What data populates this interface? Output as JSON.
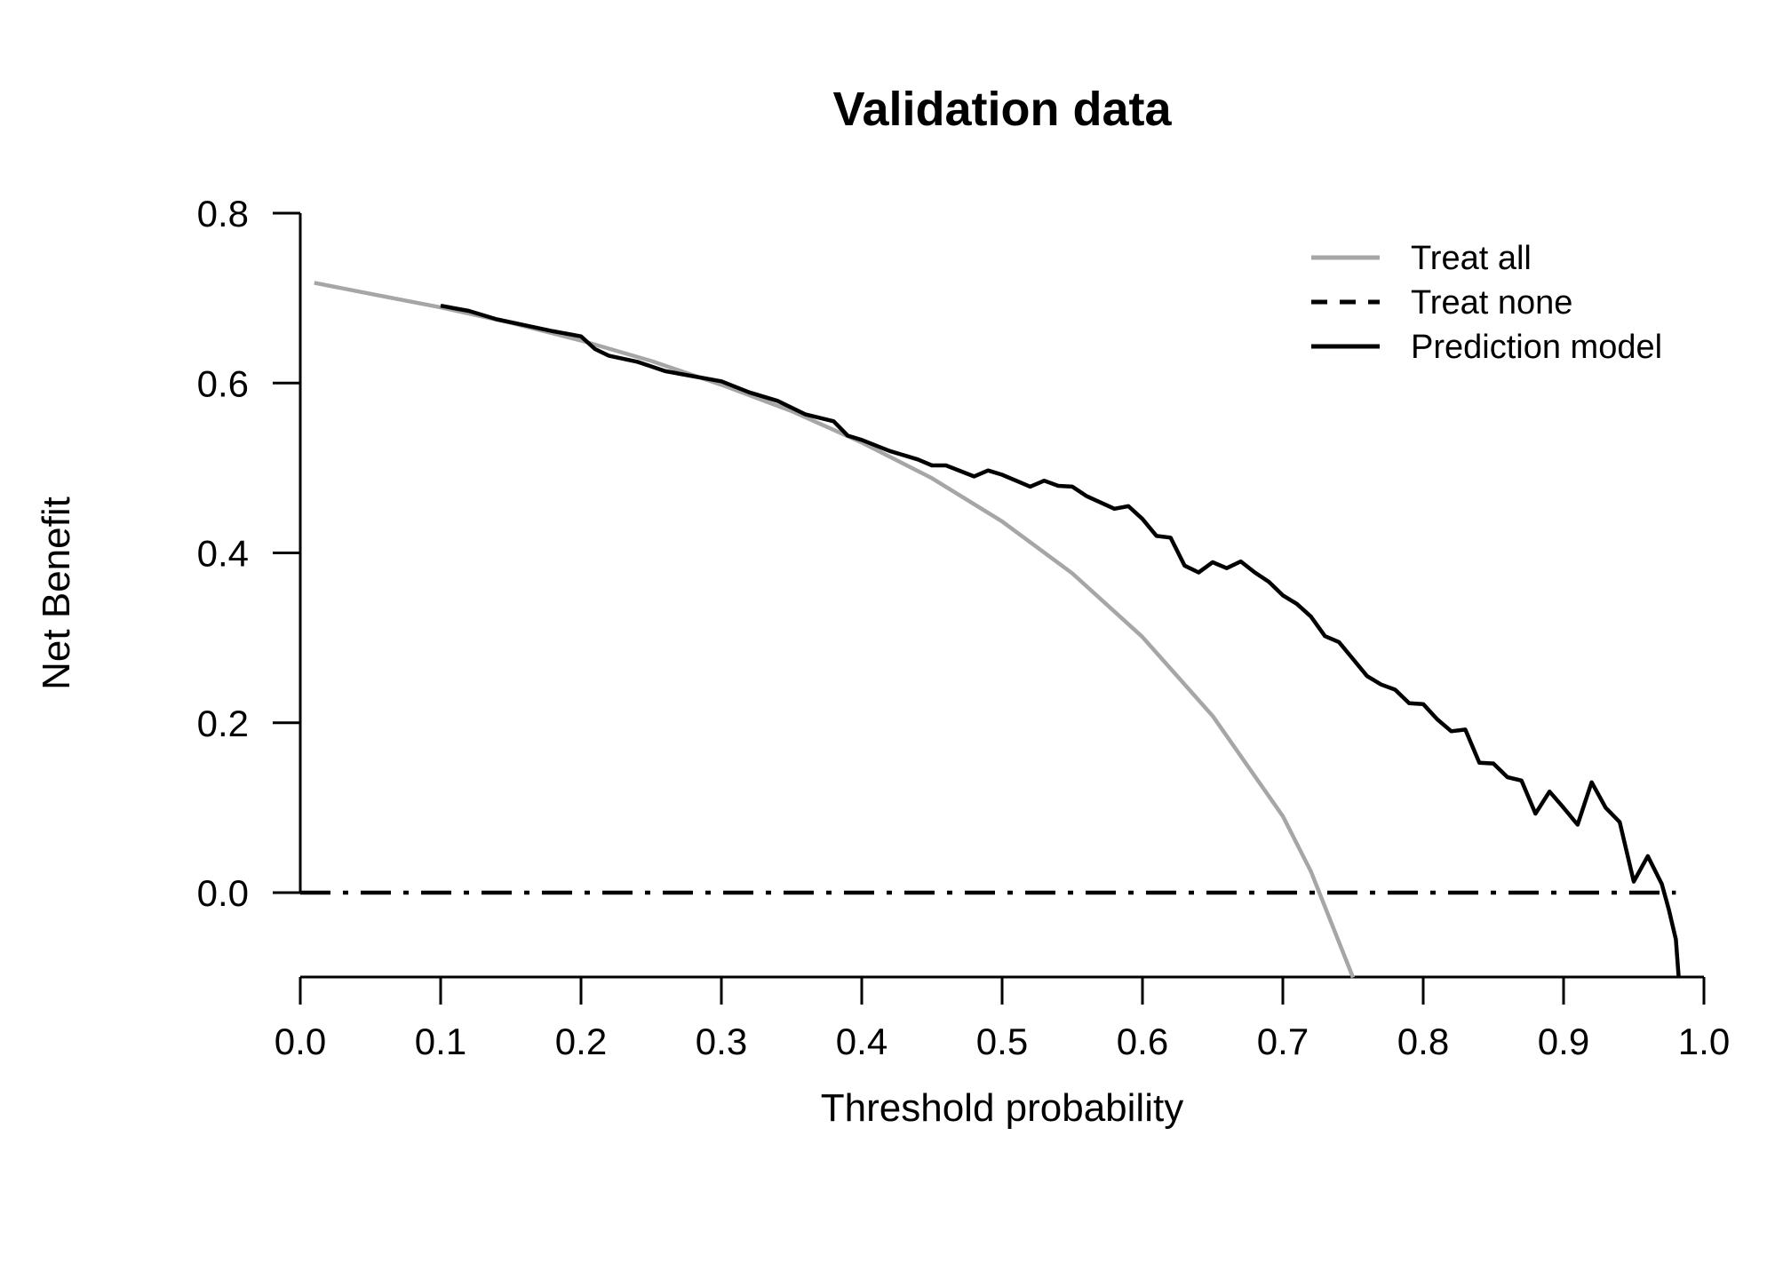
{
  "chart_data": {
    "type": "line",
    "title": "Validation data",
    "xlabel": "Threshold probability",
    "ylabel": "Net Benefit",
    "xlim": [
      0,
      1
    ],
    "ylim": [
      -0.1,
      0.8
    ],
    "xticks": [
      0.0,
      0.1,
      0.2,
      0.3,
      0.4,
      0.5,
      0.6,
      0.7,
      0.8,
      0.9,
      1.0
    ],
    "xtick_labels": [
      "0.0",
      "0.1",
      "0.2",
      "0.3",
      "0.4",
      "0.5",
      "0.6",
      "0.7",
      "0.8",
      "0.9",
      "1.0"
    ],
    "yticks": [
      0.0,
      0.2,
      0.4,
      0.6,
      0.8
    ],
    "ytick_labels": [
      "0.0",
      "0.2",
      "0.4",
      "0.6",
      "0.8"
    ],
    "grid": false,
    "legend_position": "top-right",
    "series": [
      {
        "name": "Treat all",
        "color": "#a6a6a6",
        "style": "solid",
        "x": [
          0.01,
          0.05,
          0.1,
          0.15,
          0.2,
          0.25,
          0.3,
          0.35,
          0.4,
          0.45,
          0.5,
          0.55,
          0.6,
          0.65,
          0.7,
          0.72,
          0.75
        ],
        "y": [
          0.718,
          0.705,
          0.689,
          0.671,
          0.65,
          0.626,
          0.598,
          0.567,
          0.53,
          0.488,
          0.437,
          0.376,
          0.301,
          0.208,
          0.09,
          0.025,
          -0.1
        ]
      },
      {
        "name": "Treat none",
        "color": "#000000",
        "style": "dashed",
        "x": [
          0.0,
          0.98
        ],
        "y": [
          0.0,
          0.0
        ]
      },
      {
        "name": "Prediction model",
        "color": "#000000",
        "style": "solid",
        "x": [
          0.1,
          0.12,
          0.14,
          0.16,
          0.18,
          0.2,
          0.21,
          0.22,
          0.24,
          0.26,
          0.28,
          0.3,
          0.32,
          0.34,
          0.36,
          0.38,
          0.39,
          0.4,
          0.42,
          0.44,
          0.45,
          0.46,
          0.48,
          0.49,
          0.5,
          0.52,
          0.53,
          0.54,
          0.55,
          0.56,
          0.58,
          0.59,
          0.6,
          0.61,
          0.62,
          0.63,
          0.64,
          0.65,
          0.66,
          0.67,
          0.68,
          0.69,
          0.7,
          0.71,
          0.72,
          0.73,
          0.74,
          0.75,
          0.76,
          0.77,
          0.78,
          0.79,
          0.8,
          0.81,
          0.82,
          0.83,
          0.84,
          0.85,
          0.86,
          0.87,
          0.88,
          0.89,
          0.9,
          0.91,
          0.92,
          0.93,
          0.94,
          0.95,
          0.96,
          0.97,
          0.975,
          0.98,
          0.982
        ],
        "y": [
          0.691,
          0.685,
          0.675,
          0.668,
          0.661,
          0.655,
          0.64,
          0.632,
          0.625,
          0.614,
          0.608,
          0.602,
          0.589,
          0.579,
          0.563,
          0.555,
          0.538,
          0.533,
          0.52,
          0.51,
          0.503,
          0.503,
          0.49,
          0.497,
          0.492,
          0.478,
          0.485,
          0.479,
          0.478,
          0.467,
          0.452,
          0.455,
          0.44,
          0.42,
          0.418,
          0.385,
          0.377,
          0.389,
          0.382,
          0.39,
          0.377,
          0.366,
          0.35,
          0.34,
          0.325,
          0.302,
          0.295,
          0.275,
          0.255,
          0.245,
          0.239,
          0.223,
          0.222,
          0.204,
          0.19,
          0.192,
          0.153,
          0.152,
          0.136,
          0.132,
          0.093,
          0.119,
          0.1,
          0.08,
          0.13,
          0.1,
          0.083,
          0.013,
          0.043,
          0.01,
          -0.02,
          -0.055,
          -0.1
        ]
      }
    ]
  }
}
